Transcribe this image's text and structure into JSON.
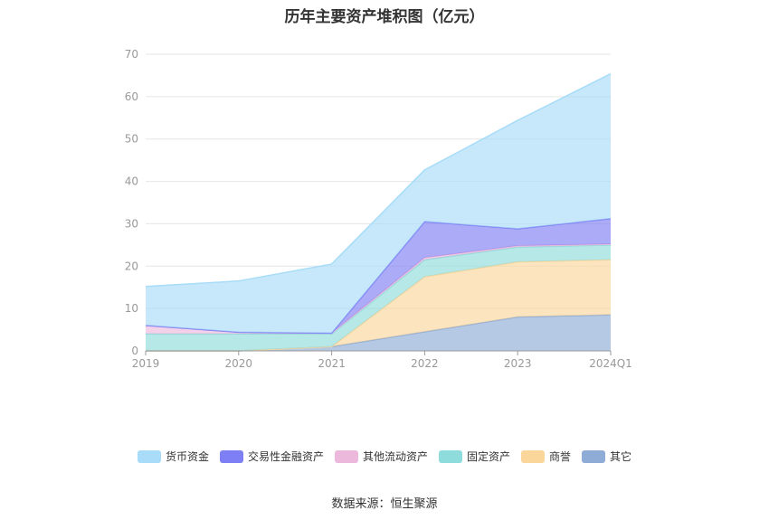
{
  "title": "历年主要资产堆积图（亿元）",
  "source_note": "数据来源：恒生聚源",
  "chart_data": {
    "type": "area",
    "stacked": true,
    "categories": [
      "2019",
      "2020",
      "2021",
      "2022",
      "2023",
      "2024Q1"
    ],
    "ylim": [
      0,
      70
    ],
    "yticks": [
      0,
      10,
      20,
      30,
      40,
      50,
      60,
      70
    ],
    "grid": true,
    "legend_position": "bottom",
    "series": [
      {
        "name": "其它",
        "color": "#8eacd6",
        "values": [
          0.0,
          0.0,
          1.0,
          4.5,
          8.0,
          8.5
        ]
      },
      {
        "name": "商誉",
        "color": "#fbd69b",
        "values": [
          0.0,
          0.0,
          0.0,
          13.0,
          13.0,
          13.0
        ]
      },
      {
        "name": "固定资产",
        "color": "#8fdcdc",
        "values": [
          4.0,
          4.0,
          3.0,
          4.0,
          3.5,
          3.5
        ]
      },
      {
        "name": "其他流动资产",
        "color": "#ecb9dd",
        "values": [
          2.0,
          0.4,
          0.2,
          0.5,
          0.3,
          0.2
        ]
      },
      {
        "name": "交易性金融资产",
        "color": "#7e7ef5",
        "values": [
          0.0,
          0.0,
          0.0,
          8.5,
          4.0,
          6.0
        ]
      },
      {
        "name": "货币资金",
        "color": "#a8dcf8",
        "values": [
          9.2,
          12.1,
          16.3,
          12.2,
          25.6,
          34.2
        ]
      }
    ]
  }
}
